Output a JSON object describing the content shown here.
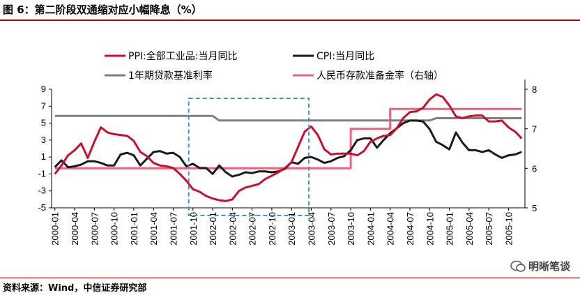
{
  "page": {
    "title": "图 6：第二阶段双通缩对应小幅降息（%）",
    "source": "资料来源：Wind，中信证券研究部",
    "watermark": "明晰笔谈"
  },
  "chart_data": {
    "type": "line",
    "title": "",
    "ylim": [
      -5,
      9
    ],
    "y_ticks": [
      9,
      7,
      5,
      3,
      1,
      -1,
      -3,
      -5
    ],
    "y2lim": [
      5,
      8
    ],
    "y2_ticks": [
      8,
      7,
      6,
      5
    ],
    "x": [
      "2000-01",
      "2000-02",
      "2000-03",
      "2000-04",
      "2000-05",
      "2000-06",
      "2000-07",
      "2000-08",
      "2000-09",
      "2000-10",
      "2000-11",
      "2000-12",
      "2001-01",
      "2001-02",
      "2001-03",
      "2001-04",
      "2001-05",
      "2001-06",
      "2001-07",
      "2001-08",
      "2001-09",
      "2001-10",
      "2001-11",
      "2001-12",
      "2002-01",
      "2002-02",
      "2002-03",
      "2002-04",
      "2002-05",
      "2002-06",
      "2002-07",
      "2002-08",
      "2002-09",
      "2002-10",
      "2002-11",
      "2002-12",
      "2003-01",
      "2003-02",
      "2003-03",
      "2003-04",
      "2003-05",
      "2003-06",
      "2003-07",
      "2003-08",
      "2003-09",
      "2003-10",
      "2003-11",
      "2003-12",
      "2004-01",
      "2004-02",
      "2004-03",
      "2004-04",
      "2004-05",
      "2004-06",
      "2004-07",
      "2004-08",
      "2004-09",
      "2004-10",
      "2004-11",
      "2004-12",
      "2005-01",
      "2005-02",
      "2005-03",
      "2005-04",
      "2005-05",
      "2005-06",
      "2005-07",
      "2005-08",
      "2005-09",
      "2005-10",
      "2005-11",
      "2005-12"
    ],
    "x_tick_labels": [
      "2000-01",
      "2000-04",
      "2000-07",
      "2000-10",
      "2001-01",
      "2001-04",
      "2001-07",
      "2001-10",
      "2002-01",
      "2002-04",
      "2002-07",
      "2002-10",
      "2003-01",
      "2003-04",
      "2003-07",
      "2003-10",
      "2004-01",
      "2004-04",
      "2004-07",
      "2004-10",
      "2005-01",
      "2005-04",
      "2005-07",
      "2005-10"
    ],
    "series": [
      {
        "name": "PPI:全部工业品:当月同比",
        "axis": "left",
        "color": "#c8102e",
        "values": [
          -1.0,
          0.0,
          1.2,
          1.8,
          2.6,
          0.9,
          2.8,
          4.5,
          3.9,
          3.7,
          3.6,
          3.5,
          2.9,
          1.6,
          1.1,
          0.3,
          0.0,
          -0.1,
          -0.3,
          -1.0,
          -1.8,
          -2.8,
          -3.1,
          -3.6,
          -3.9,
          -4.1,
          -4.2,
          -4.0,
          -3.0,
          -2.6,
          -2.4,
          -2.2,
          -1.6,
          -1.2,
          -0.8,
          -0.3,
          0.4,
          2.2,
          4.0,
          4.6,
          3.6,
          1.9,
          1.3,
          1.4,
          1.4,
          1.4,
          1.2,
          1.7,
          2.8,
          3.2,
          3.5,
          3.6,
          4.4,
          5.6,
          6.3,
          6.4,
          6.8,
          7.8,
          8.4,
          8.1,
          7.1,
          5.8,
          5.6,
          5.8,
          5.9,
          5.9,
          5.2,
          5.2,
          5.3,
          4.5,
          4.0,
          3.2
        ]
      },
      {
        "name": "CPI:当月同比",
        "axis": "left",
        "color": "#1a1a1a",
        "values": [
          -0.2,
          0.6,
          -0.2,
          -0.1,
          0.1,
          0.5,
          0.5,
          0.3,
          0.0,
          0.0,
          1.3,
          1.5,
          1.2,
          0.0,
          0.8,
          1.6,
          1.7,
          1.4,
          1.5,
          1.0,
          -0.1,
          0.2,
          -0.3,
          -0.3,
          -1.0,
          0.0,
          -0.8,
          -1.3,
          -1.1,
          -0.8,
          -0.9,
          -0.7,
          -0.7,
          -0.8,
          -0.7,
          -0.4,
          0.4,
          0.2,
          0.9,
          1.0,
          0.7,
          0.3,
          0.5,
          0.9,
          1.1,
          1.8,
          3.0,
          3.2,
          3.2,
          2.1,
          3.0,
          3.8,
          4.4,
          5.0,
          5.3,
          5.3,
          5.2,
          4.3,
          2.8,
          2.4,
          1.9,
          3.9,
          2.7,
          1.8,
          1.8,
          1.6,
          1.8,
          1.3,
          0.9,
          1.2,
          1.3,
          1.6
        ]
      },
      {
        "name": "1年期贷款基准利率",
        "axis": "left",
        "color": "#7f7f7f",
        "values": [
          5.85,
          5.85,
          5.85,
          5.85,
          5.85,
          5.85,
          5.85,
          5.85,
          5.85,
          5.85,
          5.85,
          5.85,
          5.85,
          5.85,
          5.85,
          5.85,
          5.85,
          5.85,
          5.85,
          5.85,
          5.85,
          5.85,
          5.85,
          5.85,
          5.85,
          5.31,
          5.31,
          5.31,
          5.31,
          5.31,
          5.31,
          5.31,
          5.31,
          5.31,
          5.31,
          5.31,
          5.31,
          5.31,
          5.31,
          5.31,
          5.31,
          5.31,
          5.31,
          5.31,
          5.31,
          5.31,
          5.31,
          5.31,
          5.31,
          5.31,
          5.31,
          5.31,
          5.31,
          5.31,
          5.31,
          5.31,
          5.31,
          5.31,
          5.58,
          5.58,
          5.58,
          5.58,
          5.58,
          5.58,
          5.58,
          5.58,
          5.58,
          5.58,
          5.58,
          5.58,
          5.58,
          5.58
        ]
      },
      {
        "name": "人民币存款准备金率（右轴）",
        "axis": "right",
        "color": "#f0607a",
        "values": [
          6,
          6,
          6,
          6,
          6,
          6,
          6,
          6,
          6,
          6,
          6,
          6,
          6,
          6,
          6,
          6,
          6,
          6,
          6,
          6,
          6,
          6,
          6,
          6,
          6,
          6,
          6,
          6,
          6,
          6,
          6,
          6,
          6,
          6,
          6,
          6,
          6,
          6,
          6,
          6,
          6,
          6,
          6,
          6,
          6,
          7,
          7,
          7,
          7,
          7,
          7,
          7.5,
          7.5,
          7.5,
          7.5,
          7.5,
          7.5,
          7.5,
          7.5,
          7.5,
          7.5,
          7.5,
          7.5,
          7.5,
          7.5,
          7.5,
          7.5,
          7.5,
          7.5,
          7.5,
          7.5,
          7.5
        ]
      }
    ],
    "highlight_box": {
      "x_from": "2001-10",
      "x_to": "2003-03"
    },
    "legend": [
      {
        "label": "PPI:全部工业品:当月同比",
        "color": "#c8102e"
      },
      {
        "label": "CPI:当月同比",
        "color": "#1a1a1a"
      },
      {
        "label": "1年期贷款基准利率",
        "color": "#7f7f7f"
      },
      {
        "label": "人民币存款准备金率（右轴）",
        "color": "#f0607a"
      }
    ]
  }
}
